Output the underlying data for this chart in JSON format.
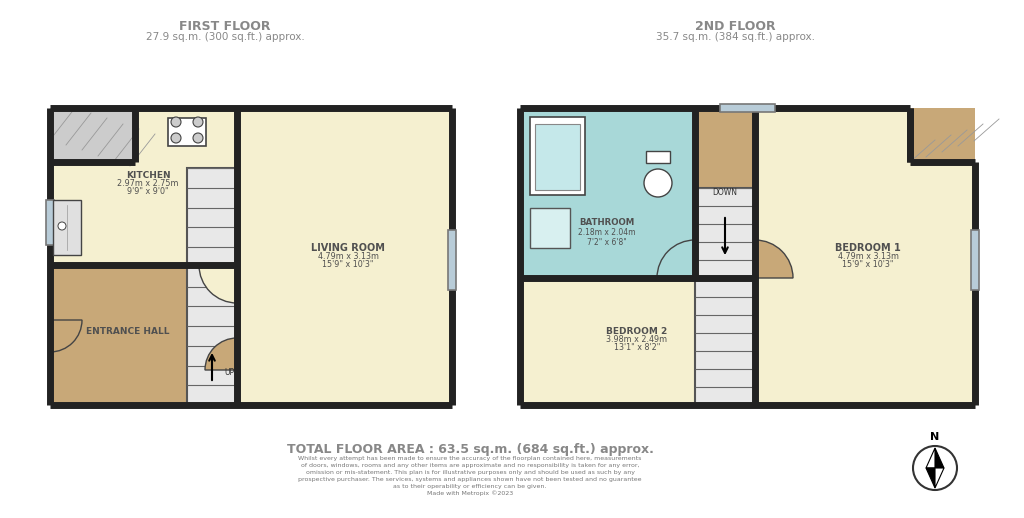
{
  "floor1_title": "FIRST FLOOR",
  "floor1_subtitle": "27.9 sq.m. (300 sq.ft.) approx.",
  "floor2_title": "2ND FLOOR",
  "floor2_subtitle": "35.7 sq.m. (384 sq.ft.) approx.",
  "total_area": "TOTAL FLOOR AREA : 63.5 sq.m. (684 sq.ft.) approx.",
  "disclaimer": "Whilst every attempt has been made to ensure the accuracy of the floorplan contained here, measurements\nof doors, windows, rooms and any other items are approximate and no responsibility is taken for any error,\nomission or mis-statement. This plan is for illustrative purposes only and should be used as such by any\nprospective purchaser. The services, systems and appliances shown have not been tested and no guarantee\nas to their operability or efficiency can be given.\nMade with Metropix ©2023",
  "color_living": "#f5f0d0",
  "color_kitchen": "#f5f0d0",
  "color_hall": "#c8a878",
  "color_bathroom": "#a8d8d8",
  "color_bedroom1": "#f5f0d0",
  "color_bedroom2": "#f5f0d0",
  "color_landing": "#c8a878",
  "color_stairs": "#e8e8e8",
  "color_wall": "#222222",
  "color_window": "#b8ccd8",
  "title_color": "#888888",
  "text_color": "#505050"
}
